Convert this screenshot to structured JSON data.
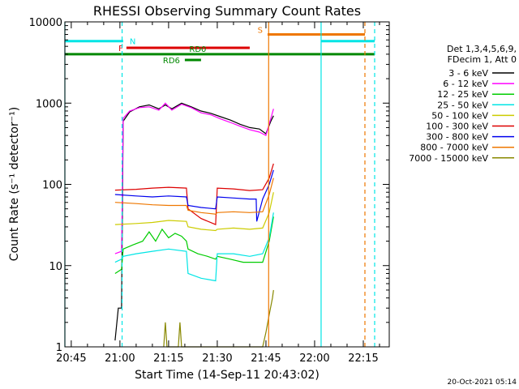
{
  "chart_data": {
    "type": "line",
    "title": "RHESSI Observing Summary Count Rates",
    "xlabel": "Start Time (14-Sep-11 20:43:02)",
    "ylabel": "Count Rate (s⁻¹ detector⁻¹)",
    "y_scale": "log",
    "ylim": [
      1,
      10000
    ],
    "xlim": [
      "20:43:02",
      "22:23:00"
    ],
    "x_ticks": [
      "20:45",
      "21:00",
      "21:15",
      "21:30",
      "21:45",
      "22:00",
      "22:15"
    ],
    "y_ticks": [
      "1",
      "10",
      "100",
      "1000",
      "10000"
    ],
    "grid": false,
    "legend_position": "right",
    "legend_header": [
      "Det 1,3,4,5,6,9,",
      "FDecim 1, Att 0"
    ],
    "series": [
      {
        "name": "3 - 6 keV",
        "color": "#000000",
        "points": [
          [
            "20:58:30",
            1.2
          ],
          [
            "20:59:30",
            3
          ],
          [
            "21:00:30",
            3
          ],
          [
            "21:01:00",
            600
          ],
          [
            "21:03:00",
            780
          ],
          [
            "21:06:00",
            900
          ],
          [
            "21:09:00",
            950
          ],
          [
            "21:12:00",
            850
          ],
          [
            "21:14:00",
            950
          ],
          [
            "21:16:00",
            850
          ],
          [
            "21:19:00",
            1000
          ],
          [
            "21:22:00",
            900
          ],
          [
            "21:25:00",
            800
          ],
          [
            "21:28:00",
            750
          ],
          [
            "21:31:00",
            680
          ],
          [
            "21:34:00",
            620
          ],
          [
            "21:37:00",
            550
          ],
          [
            "21:40:00",
            500
          ],
          [
            "21:43:00",
            480
          ],
          [
            "21:45:00",
            420
          ],
          [
            "21:46:30",
            600
          ],
          [
            "21:47:20",
            700
          ]
        ]
      },
      {
        "name": "6 - 12 keV",
        "color": "#ff00ff",
        "points": [
          [
            "20:58:30",
            14
          ],
          [
            "21:00:30",
            15
          ],
          [
            "21:01:00",
            650
          ],
          [
            "21:03:00",
            800
          ],
          [
            "21:06:00",
            880
          ],
          [
            "21:09:00",
            900
          ],
          [
            "21:12:00",
            820
          ],
          [
            "21:14:00",
            1000
          ],
          [
            "21:16:00",
            820
          ],
          [
            "21:19:00",
            970
          ],
          [
            "21:22:00",
            880
          ],
          [
            "21:25:00",
            760
          ],
          [
            "21:28:00",
            720
          ],
          [
            "21:31:00",
            640
          ],
          [
            "21:34:00",
            580
          ],
          [
            "21:37:00",
            520
          ],
          [
            "21:40:00",
            470
          ],
          [
            "21:43:00",
            440
          ],
          [
            "21:45:00",
            400
          ],
          [
            "21:46:30",
            650
          ],
          [
            "21:47:20",
            850
          ]
        ]
      },
      {
        "name": "12 - 25 keV",
        "color": "#00cc00",
        "points": [
          [
            "20:58:30",
            8
          ],
          [
            "21:00:30",
            9
          ],
          [
            "21:01:00",
            16
          ],
          [
            "21:04:00",
            18
          ],
          [
            "21:07:00",
            20
          ],
          [
            "21:09:00",
            26
          ],
          [
            "21:11:00",
            20
          ],
          [
            "21:13:00",
            28
          ],
          [
            "21:15:00",
            22
          ],
          [
            "21:17:00",
            25
          ],
          [
            "21:19:00",
            23
          ],
          [
            "21:20:30",
            20
          ],
          [
            "21:21:00",
            16
          ],
          [
            "21:24:00",
            14
          ],
          [
            "21:27:00",
            13
          ],
          [
            "21:29:30",
            12
          ],
          [
            "21:30:00",
            13
          ],
          [
            "21:34:00",
            12
          ],
          [
            "21:38:00",
            11
          ],
          [
            "21:42:00",
            11
          ],
          [
            "21:44:00",
            11
          ],
          [
            "21:46:00",
            20
          ],
          [
            "21:47:20",
            40
          ]
        ]
      },
      {
        "name": "25 - 50 keV",
        "color": "#00e5e5",
        "points": [
          [
            "20:58:30",
            11
          ],
          [
            "21:00:30",
            12
          ],
          [
            "21:01:00",
            13
          ],
          [
            "21:05:00",
            14
          ],
          [
            "21:10:00",
            15
          ],
          [
            "21:15:00",
            16
          ],
          [
            "21:20:30",
            15
          ],
          [
            "21:21:00",
            8
          ],
          [
            "21:25:00",
            7
          ],
          [
            "21:29:30",
            6.5
          ],
          [
            "21:30:00",
            14
          ],
          [
            "21:35:00",
            14
          ],
          [
            "21:40:00",
            13
          ],
          [
            "21:44:00",
            14
          ],
          [
            "21:46:00",
            22
          ],
          [
            "21:47:20",
            45
          ]
        ]
      },
      {
        "name": "50 - 100 keV",
        "color": "#cccc00",
        "points": [
          [
            "20:58:30",
            32
          ],
          [
            "21:05:00",
            33
          ],
          [
            "21:10:00",
            34
          ],
          [
            "21:15:00",
            36
          ],
          [
            "21:20:30",
            35
          ],
          [
            "21:21:00",
            30
          ],
          [
            "21:25:00",
            28
          ],
          [
            "21:29:30",
            27
          ],
          [
            "21:30:00",
            28
          ],
          [
            "21:35:00",
            29
          ],
          [
            "21:40:00",
            28
          ],
          [
            "21:44:00",
            29
          ],
          [
            "21:46:00",
            45
          ],
          [
            "21:47:20",
            80
          ]
        ]
      },
      {
        "name": "100 - 300 keV",
        "color": "#dd0000",
        "points": [
          [
            "20:58:30",
            85
          ],
          [
            "21:05:00",
            87
          ],
          [
            "21:10:00",
            90
          ],
          [
            "21:15:00",
            92
          ],
          [
            "21:20:30",
            90
          ],
          [
            "21:21:00",
            50
          ],
          [
            "21:25:00",
            38
          ],
          [
            "21:29:30",
            32
          ],
          [
            "21:30:00",
            90
          ],
          [
            "21:35:00",
            88
          ],
          [
            "21:40:00",
            84
          ],
          [
            "21:44:00",
            86
          ],
          [
            "21:46:00",
            120
          ],
          [
            "21:47:20",
            180
          ]
        ]
      },
      {
        "name": "300 - 800 keV",
        "color": "#0000ee",
        "points": [
          [
            "20:58:30",
            75
          ],
          [
            "21:05:00",
            72
          ],
          [
            "21:10:00",
            70
          ],
          [
            "21:15:00",
            72
          ],
          [
            "21:20:30",
            70
          ],
          [
            "21:21:00",
            55
          ],
          [
            "21:25:00",
            52
          ],
          [
            "21:29:30",
            50
          ],
          [
            "21:30:00",
            70
          ],
          [
            "21:35:00",
            68
          ],
          [
            "21:40:00",
            66
          ],
          [
            "21:42:00",
            66
          ],
          [
            "21:42:10",
            35
          ],
          [
            "21:44:00",
            66
          ],
          [
            "21:46:00",
            100
          ],
          [
            "21:47:20",
            150
          ]
        ]
      },
      {
        "name": "800 - 7000 keV",
        "color": "#ee7700",
        "points": [
          [
            "20:58:30",
            60
          ],
          [
            "21:05:00",
            58
          ],
          [
            "21:10:00",
            56
          ],
          [
            "21:15:00",
            55
          ],
          [
            "21:20:30",
            55
          ],
          [
            "21:21:00",
            48
          ],
          [
            "21:25:00",
            45
          ],
          [
            "21:29:30",
            43
          ],
          [
            "21:30:00",
            45
          ],
          [
            "21:35:00",
            46
          ],
          [
            "21:40:00",
            45
          ],
          [
            "21:44:00",
            46
          ],
          [
            "21:46:00",
            75
          ],
          [
            "21:47:20",
            120
          ]
        ]
      },
      {
        "name": "7000 - 15000 keV",
        "color": "#888800",
        "points": [
          [
            "21:13:30",
            1
          ],
          [
            "21:14:00",
            2
          ],
          [
            "21:14:30",
            1
          ],
          [
            "21:18:00",
            1
          ],
          [
            "21:18:30",
            2
          ],
          [
            "21:19:00",
            1
          ],
          [
            "21:44:00",
            1
          ],
          [
            "21:45:00",
            1.5
          ],
          [
            "21:46:00",
            2.5
          ],
          [
            "21:47:00",
            4
          ],
          [
            "21:47:20",
            5
          ]
        ]
      }
    ],
    "flags": [
      {
        "label": "N",
        "color": "#00e5e5",
        "y": 5800,
        "segments": [
          [
            "20:43:02",
            "21:01:00"
          ],
          [
            "22:02:00",
            "22:18:30"
          ]
        ]
      },
      {
        "label": "S",
        "color": "#ee7700",
        "y": 7000,
        "segments": [
          [
            "21:45:30",
            "22:15:30"
          ]
        ]
      },
      {
        "label": "F",
        "color": "#dd0000",
        "y": 4800,
        "segments": [
          [
            "21:02:00",
            "21:40:00"
          ]
        ]
      },
      {
        "label": "RD0",
        "color": "#008800",
        "y": 4000,
        "segments": [
          [
            "20:43:02",
            "22:18:30"
          ]
        ]
      },
      {
        "label": "RD6",
        "color": "#008800",
        "y": 3400,
        "segments": [
          [
            "21:20:00",
            "21:25:00"
          ]
        ]
      }
    ],
    "vertical_markers": [
      {
        "time": "20:43:02",
        "color": "#00e5e5",
        "style": "solid"
      },
      {
        "time": "21:00:40",
        "color": "#00e5e5",
        "style": "dashed"
      },
      {
        "time": "21:45:50",
        "color": "#ee7700",
        "style": "solid"
      },
      {
        "time": "22:02:00",
        "color": "#00e5e5",
        "style": "solid"
      },
      {
        "time": "22:15:30",
        "color": "#ee7700",
        "style": "dashed"
      },
      {
        "time": "22:18:30",
        "color": "#00e5e5",
        "style": "dashed"
      }
    ]
  },
  "footer": {
    "timestamp": "20-Oct-2021 05:14"
  }
}
